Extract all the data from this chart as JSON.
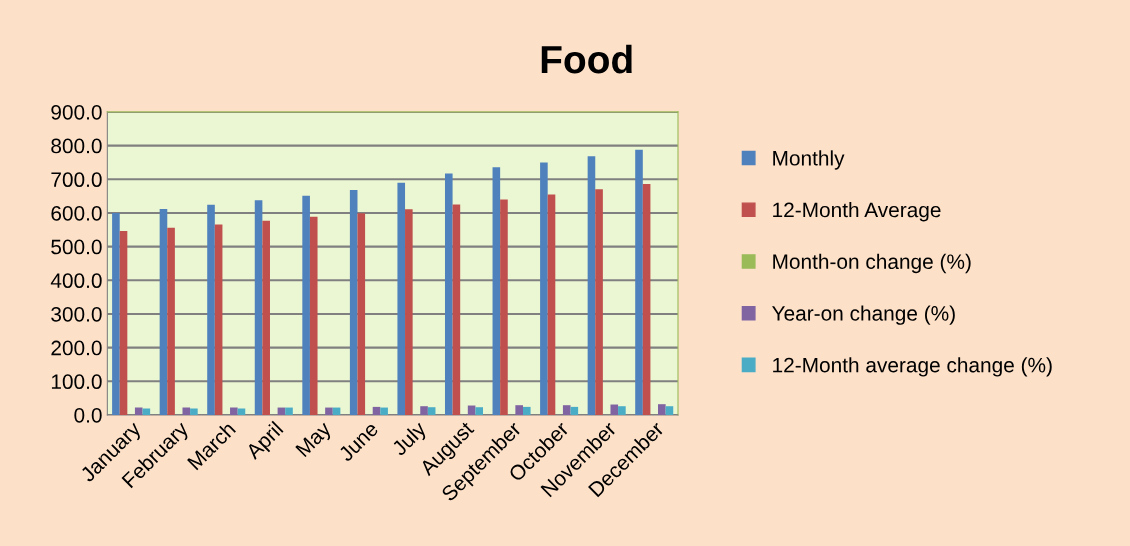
{
  "chart_data": {
    "type": "bar",
    "title": "Food",
    "categories": [
      "January",
      "February",
      "March",
      "April",
      "May",
      "June",
      "July",
      "August",
      "September",
      "October",
      "November",
      "December"
    ],
    "series": [
      {
        "name": "Monthly",
        "color": "#4f81bd",
        "values": [
          600,
          612,
          624,
          638,
          651,
          668,
          690,
          717,
          736,
          750,
          768,
          788
        ]
      },
      {
        "name": "12-Month Average",
        "color": "#c0504d",
        "values": [
          546,
          556,
          566,
          577,
          589,
          599,
          611,
          625,
          640,
          655,
          670,
          686
        ]
      },
      {
        "name": "Month-on change (%)",
        "color": "#9bbb59",
        "values": [
          null,
          null,
          null,
          null,
          null,
          null,
          null,
          null,
          null,
          null,
          null,
          null
        ]
      },
      {
        "name": "Year-on change (%)",
        "color": "#8064a2",
        "values": [
          22,
          22,
          22,
          22,
          22,
          24,
          26,
          28,
          29,
          29,
          31,
          32
        ]
      },
      {
        "name": "12-Month average change (%)",
        "color": "#4bacc6",
        "values": [
          19,
          19,
          19,
          22,
          22,
          22,
          23,
          23,
          24,
          24,
          26,
          26
        ]
      }
    ],
    "ylim": [
      0,
      900
    ],
    "yticks": [
      {
        "value": 0,
        "label": "0.0"
      },
      {
        "value": 100,
        "label": "100.0"
      },
      {
        "value": 200,
        "label": "200.0"
      },
      {
        "value": 300,
        "label": "300.0"
      },
      {
        "value": 400,
        "label": "400.0"
      },
      {
        "value": 500,
        "label": "500.0"
      },
      {
        "value": 600,
        "label": "600.0"
      },
      {
        "value": 700,
        "label": "700.0"
      },
      {
        "value": 800,
        "label": "800.0"
      },
      {
        "value": 900,
        "label": "900.0"
      }
    ],
    "grid": "y",
    "legend": "right"
  }
}
